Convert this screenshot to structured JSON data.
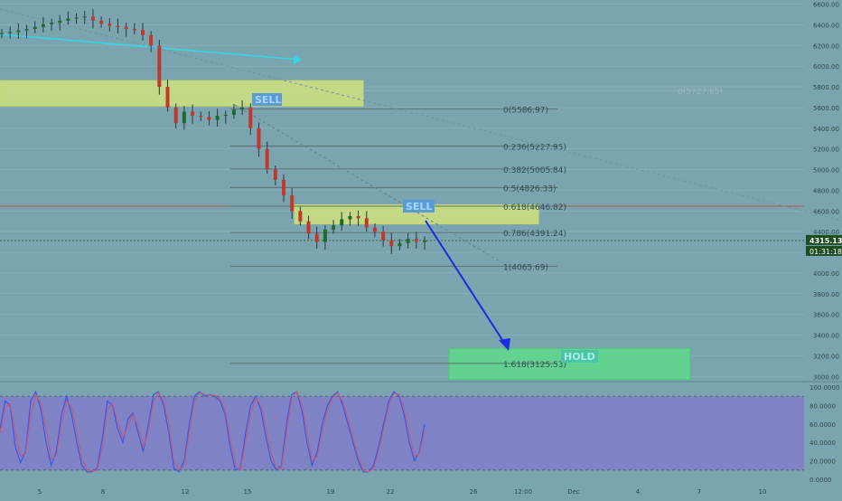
{
  "chart_data": [
    {
      "type": "candlestick",
      "price_axis": {
        "ticks": [
          "6600.00",
          "6400.00",
          "6200.00",
          "6000.00",
          "5800.00",
          "5600.00",
          "5400.00",
          "5200.00",
          "5000.00",
          "4800.00",
          "4600.00",
          "4400.00",
          "4200.00",
          "4000.00",
          "3800.00",
          "3600.00",
          "3400.00",
          "3200.00",
          "3000.00"
        ],
        "range": [
          2950,
          6640
        ]
      },
      "time_axis": {
        "ticks": [
          "5",
          "8",
          "12",
          "15",
          "19",
          "22",
          "26",
          "12:00",
          "Dec",
          "4",
          "7",
          "10"
        ]
      },
      "current_price": "4315.13",
      "countdown": "01:31:18",
      "fib_levels": [
        {
          "label": "0(5586.97)",
          "value": 5586.97
        },
        {
          "label": "0.236(5227.95)",
          "value": 5227.95
        },
        {
          "label": "0.382(5005.84)",
          "value": 5005.84
        },
        {
          "label": "0.5(4826.33)",
          "value": 4826.33
        },
        {
          "label": "0.618(4646.82)",
          "value": 4646.82
        },
        {
          "label": "0.786(4391.24)",
          "value": 4391.24
        },
        {
          "label": "1(4065.69)",
          "value": 4065.69
        },
        {
          "label": "1.618(3125.53)",
          "value": 3125.53
        }
      ],
      "faded_fib_label": "0(5727.65)",
      "zones": [
        {
          "label": "SELL",
          "type": "sell-zone",
          "from": 5615,
          "to": 5860
        },
        {
          "label": "SELL",
          "type": "sell-zone",
          "from": 4475,
          "to": 4660
        },
        {
          "label": "HOLD",
          "type": "target-zone",
          "from": 2970,
          "to": 3270
        }
      ],
      "horizontal_line": 4646.82,
      "close_series": [
        6320,
        6330,
        6345,
        6360,
        6380,
        6405,
        6420,
        6440,
        6460,
        6470,
        6480,
        6440,
        6410,
        6390,
        6380,
        6360,
        6350,
        6300,
        6200,
        5800,
        5600,
        5450,
        5560,
        5520,
        5510,
        5480,
        5520,
        5530,
        5580,
        5600,
        5400,
        5200,
        5000,
        4900,
        4750,
        4600,
        4500,
        4380,
        4300,
        4420,
        4460,
        4520,
        4550,
        4530,
        4440,
        4400,
        4320,
        4260,
        4290,
        4330,
        4300,
        4315
      ]
    },
    {
      "type": "line",
      "name": "stochastic",
      "y_axis": {
        "ticks": [
          "100.0000",
          "80.0000",
          "60.0000",
          "40.0000",
          "20.0000",
          "0.0000"
        ],
        "range": [
          0,
          100
        ]
      },
      "series": [
        {
          "color": "#3a58e8",
          "values": [
            55,
            85,
            80,
            35,
            18,
            30,
            85,
            95,
            75,
            40,
            15,
            30,
            70,
            90,
            70,
            40,
            15,
            8,
            8,
            12,
            45,
            85,
            80,
            55,
            40,
            65,
            72,
            50,
            30,
            60,
            92,
            95,
            80,
            50,
            12,
            8,
            20,
            60,
            90,
            95,
            90,
            92,
            90,
            85,
            70,
            35,
            10,
            12,
            50,
            80,
            90,
            75,
            45,
            20,
            10,
            15,
            60,
            92,
            95,
            75,
            40,
            15,
            30,
            60,
            80,
            90,
            95,
            80,
            60,
            40,
            20,
            8,
            8,
            15,
            35,
            60,
            85,
            95,
            90,
            70,
            40,
            20,
            30,
            60
          ]
        },
        {
          "color": "#c25a7a",
          "values": [
            50,
            78,
            82,
            50,
            25,
            28,
            70,
            92,
            82,
            55,
            22,
            25,
            60,
            85,
            78,
            50,
            22,
            10,
            9,
            10,
            35,
            75,
            82,
            62,
            45,
            58,
            70,
            56,
            35,
            52,
            85,
            94,
            85,
            60,
            20,
            10,
            15,
            50,
            85,
            94,
            92,
            91,
            91,
            87,
            75,
            45,
            15,
            10,
            40,
            72,
            88,
            80,
            55,
            28,
            12,
            12,
            50,
            88,
            95,
            82,
            50,
            20,
            25,
            52,
            75,
            88,
            94,
            84,
            66,
            45,
            25,
            10,
            8,
            12,
            30,
            55,
            80,
            93,
            92,
            76,
            48,
            25,
            28,
            52
          ]
        }
      ]
    }
  ]
}
